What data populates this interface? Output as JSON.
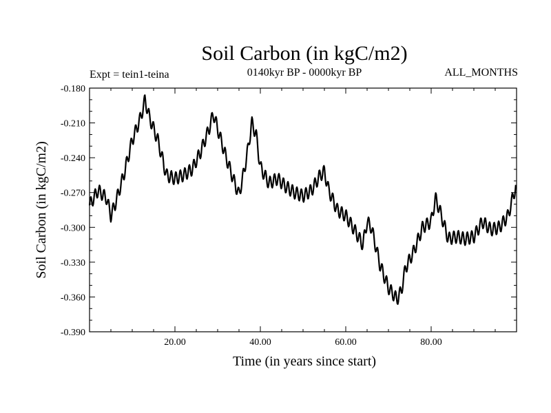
{
  "chart_data": {
    "type": "line",
    "title": "Soil Carbon (in kgC/m2)",
    "subtitle": "0140kyr BP - 0000kyr BP",
    "annotation_left": "Expt = tein1-teina",
    "annotation_right": "ALL_MONTHS",
    "xlabel": "Time (in years since start)",
    "ylabel": "Soil Carbon (in kgC/m2)",
    "xlim": [
      0,
      100
    ],
    "ylim": [
      -0.39,
      -0.18
    ],
    "x_ticks": [
      20,
      40,
      60,
      80
    ],
    "x_tick_labels": [
      "20.00",
      "40.00",
      "60.00",
      "80.00"
    ],
    "y_ticks": [
      -0.18,
      -0.21,
      -0.24,
      -0.27,
      -0.3,
      -0.33,
      -0.36,
      -0.39
    ],
    "y_tick_labels": [
      "-0.180",
      "-0.210",
      "-0.240",
      "-0.270",
      "-0.300",
      "-0.330",
      "-0.360",
      "-0.390"
    ],
    "series": [
      {
        "name": "Soil Carbon",
        "x": [
          0,
          2,
          4,
          5,
          6,
          8,
          10,
          12,
          13,
          14,
          16,
          18,
          20,
          22,
          24,
          26,
          28,
          29,
          30,
          32,
          34,
          35,
          36,
          37,
          38,
          39,
          40,
          42,
          44,
          46,
          48,
          50,
          52,
          54,
          55,
          56,
          58,
          60,
          62,
          64,
          65,
          66,
          68,
          70,
          72,
          73,
          74,
          76,
          78,
          80,
          81,
          82,
          84,
          86,
          88,
          90,
          92,
          94,
          96,
          98,
          99.8
        ],
        "y": [
          -0.281,
          -0.268,
          -0.275,
          -0.29,
          -0.28,
          -0.255,
          -0.225,
          -0.205,
          -0.19,
          -0.205,
          -0.225,
          -0.255,
          -0.258,
          -0.255,
          -0.25,
          -0.235,
          -0.215,
          -0.202,
          -0.215,
          -0.24,
          -0.262,
          -0.272,
          -0.255,
          -0.235,
          -0.21,
          -0.22,
          -0.248,
          -0.262,
          -0.258,
          -0.265,
          -0.27,
          -0.273,
          -0.268,
          -0.255,
          -0.252,
          -0.268,
          -0.285,
          -0.29,
          -0.302,
          -0.315,
          -0.295,
          -0.3,
          -0.332,
          -0.352,
          -0.362,
          -0.355,
          -0.335,
          -0.32,
          -0.3,
          -0.295,
          -0.275,
          -0.285,
          -0.31,
          -0.308,
          -0.31,
          -0.308,
          -0.295,
          -0.302,
          -0.3,
          -0.29,
          -0.265
        ]
      }
    ]
  }
}
